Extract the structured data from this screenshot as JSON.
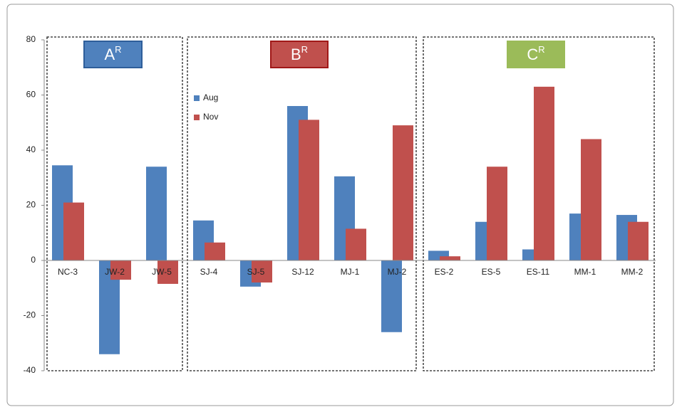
{
  "chart_data": {
    "type": "bar",
    "categories": [
      "NC-3",
      "JW-2",
      "JW-5",
      "SJ-4",
      "SJ-5",
      "SJ-12",
      "MJ-1",
      "MJ-2",
      "ES-2",
      "ES-5",
      "ES-11",
      "MM-1",
      "MM-2"
    ],
    "series": [
      {
        "name": "Aug",
        "color": "#4f81bd",
        "values": [
          34.5,
          -34,
          34,
          14.5,
          -9.5,
          56,
          30.5,
          -26,
          3.5,
          14,
          4,
          17,
          16.5
        ]
      },
      {
        "name": "Nov",
        "color": "#c0504d",
        "values": [
          21,
          -7,
          -8.5,
          6.5,
          -8,
          51,
          11.5,
          49,
          1.5,
          34,
          63,
          44,
          14
        ]
      }
    ],
    "groups": [
      {
        "name": "A",
        "superscript": "R",
        "color": "#4f81bd",
        "border": "#2e5e9a"
      },
      {
        "name": "B",
        "superscript": "R",
        "color": "#c0504d",
        "border": "#a01818"
      },
      {
        "name": "C",
        "superscript": "R",
        "color": "#9bbb59",
        "border": "#9bbb59"
      }
    ],
    "ylim": [
      -40,
      80
    ],
    "yticks": [
      -40,
      -20,
      0,
      20,
      40,
      60,
      80
    ],
    "grid": false,
    "legend": "top-left"
  }
}
